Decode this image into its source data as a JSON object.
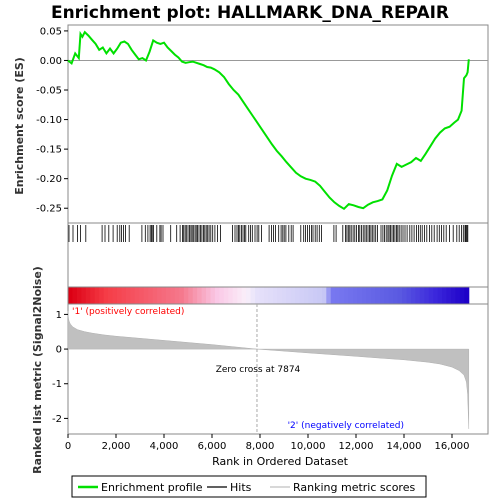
{
  "chart_data": {
    "type": "line",
    "title": "Enrichment plot: HALLMARK_DNA_REPAIR",
    "es_panel": {
      "ylabel": "Enrichment score (ES)",
      "ylim": [
        -0.275,
        0.06
      ],
      "yticks": [
        0.05,
        0.0,
        -0.05,
        -0.1,
        -0.15,
        -0.2,
        -0.25
      ],
      "ytick_labels": [
        "0.05",
        "0.00",
        "-0.05",
        "-0.10",
        "-0.15",
        "-0.20",
        "-0.25"
      ],
      "series": [
        {
          "name": "Enrichment profile",
          "color": "#00e000",
          "x": [
            0,
            150,
            300,
            450,
            520,
            600,
            700,
            850,
            1000,
            1150,
            1300,
            1450,
            1600,
            1750,
            1900,
            2050,
            2200,
            2350,
            2500,
            2650,
            2800,
            2950,
            3100,
            3250,
            3400,
            3550,
            3700,
            3850,
            4000,
            4150,
            4300,
            4450,
            4600,
            4750,
            4900,
            5050,
            5200,
            5350,
            5500,
            5650,
            5800,
            5950,
            6100,
            6300,
            6500,
            6700,
            6900,
            7100,
            7300,
            7500,
            7700,
            7900,
            8100,
            8300,
            8500,
            8700,
            8900,
            9100,
            9300,
            9500,
            9700,
            9900,
            10100,
            10300,
            10500,
            10700,
            10900,
            11100,
            11300,
            11500,
            11700,
            11900,
            12100,
            12300,
            12500,
            12700,
            12900,
            13100,
            13300,
            13500,
            13700,
            13900,
            14100,
            14300,
            14500,
            14700,
            14900,
            15100,
            15300,
            15500,
            15700,
            15900,
            16100,
            16250,
            16400,
            16500,
            16600,
            16650,
            16700
          ],
          "y": [
            0.0,
            -0.005,
            0.012,
            0.004,
            0.045,
            0.04,
            0.048,
            0.042,
            0.035,
            0.028,
            0.018,
            0.022,
            0.012,
            0.02,
            0.012,
            0.02,
            0.03,
            0.032,
            0.028,
            0.018,
            0.01,
            0.002,
            0.004,
            0.0,
            0.015,
            0.034,
            0.03,
            0.028,
            0.03,
            0.022,
            0.016,
            0.01,
            0.005,
            -0.002,
            -0.004,
            -0.003,
            -0.002,
            -0.004,
            -0.006,
            -0.008,
            -0.011,
            -0.012,
            -0.015,
            -0.02,
            -0.028,
            -0.04,
            -0.05,
            -0.058,
            -0.07,
            -0.082,
            -0.094,
            -0.106,
            -0.118,
            -0.13,
            -0.142,
            -0.153,
            -0.162,
            -0.172,
            -0.181,
            -0.19,
            -0.196,
            -0.2,
            -0.202,
            -0.205,
            -0.212,
            -0.222,
            -0.232,
            -0.24,
            -0.246,
            -0.251,
            -0.243,
            -0.245,
            -0.248,
            -0.25,
            -0.244,
            -0.24,
            -0.238,
            -0.235,
            -0.22,
            -0.195,
            -0.175,
            -0.18,
            -0.176,
            -0.172,
            -0.165,
            -0.17,
            -0.158,
            -0.145,
            -0.132,
            -0.122,
            -0.115,
            -0.112,
            -0.105,
            -0.1,
            -0.085,
            -0.03,
            -0.025,
            -0.02,
            0.002
          ]
        }
      ]
    },
    "hits": [
      40,
      210,
      400,
      520,
      740,
      1420,
      1540,
      1700,
      1880,
      2050,
      2160,
      2230,
      2310,
      2400,
      2550,
      3080,
      3220,
      3330,
      3420,
      3470,
      3510,
      3560,
      3700,
      3830,
      3880,
      3960,
      4280,
      4530,
      4670,
      4770,
      4820,
      4880,
      4930,
      5000,
      5060,
      5120,
      5170,
      5220,
      5290,
      5340,
      5400,
      5460,
      5520,
      5580,
      5640,
      5700,
      5760,
      5820,
      5880,
      5950,
      6030,
      6120,
      6230,
      6360,
      6850,
      6960,
      7040,
      7110,
      7160,
      7230,
      7290,
      7350,
      7410,
      7530,
      7600,
      7680,
      7790,
      7880,
      7950,
      8060,
      8380,
      8480,
      8560,
      8640,
      8780,
      8880,
      8950,
      9010,
      9080,
      9200,
      9300,
      9380,
      9700,
      9820,
      9900,
      9980,
      10060,
      10140,
      10210,
      10300,
      10380,
      10470,
      10560,
      11080,
      11170,
      11450,
      11560,
      11620,
      11680,
      11740,
      11800,
      11880,
      11950,
      12020,
      12100,
      12160,
      12230,
      12300,
      12370,
      12430,
      12500,
      12560,
      12620,
      12680,
      12750,
      12820,
      12900,
      13040,
      13120,
      13190,
      13260,
      13330,
      13380,
      13440,
      13500,
      13560,
      13620,
      13690,
      13740,
      13800,
      13880,
      13960,
      14040,
      14130,
      14240,
      14330,
      14420,
      14520,
      14600,
      14680,
      14760,
      14860,
      14950,
      15060,
      15160,
      15260,
      15380,
      15470,
      15560,
      15660,
      15760,
      15900,
      16050,
      16200,
      16300,
      16390,
      16470,
      16540,
      16580,
      16620,
      16660
    ],
    "metric_panel": {
      "ylabel": "Ranked list metric (Signal2Noise)",
      "ylim": [
        -2.45,
        1.3
      ],
      "yticks": [
        1,
        0,
        -1,
        -2
      ],
      "ytick_labels": [
        "1",
        "0",
        "-1",
        "-2"
      ],
      "x": [
        0,
        10,
        30,
        60,
        100,
        200,
        400,
        700,
        1000,
        1500,
        2000,
        3000,
        4000,
        5000,
        6000,
        7000,
        7874,
        9000,
        10000,
        11000,
        12000,
        13000,
        14000,
        15000,
        15500,
        16000,
        16300,
        16500,
        16600,
        16650,
        16700
      ],
      "y": [
        1.1,
        0.95,
        0.85,
        0.78,
        0.72,
        0.64,
        0.56,
        0.5,
        0.46,
        0.41,
        0.37,
        0.31,
        0.25,
        0.19,
        0.13,
        0.06,
        0.0,
        -0.06,
        -0.11,
        -0.16,
        -0.21,
        -0.26,
        -0.31,
        -0.38,
        -0.43,
        -0.52,
        -0.62,
        -0.75,
        -0.95,
        -1.3,
        -2.3
      ],
      "zero_cross_label": "Zero cross at 7874",
      "zero_cross": 7874,
      "pos_label": "'1' (positively correlated)",
      "neg_label": "'2' (negatively correlated)"
    },
    "xaxis": {
      "label": "Rank in Ordered Dataset",
      "xlim": [
        0,
        17500
      ],
      "ticks": [
        0,
        2000,
        4000,
        6000,
        8000,
        10000,
        12000,
        14000,
        16000
      ],
      "tick_labels": [
        "0",
        "2,000",
        "4,000",
        "6,000",
        "8,000",
        "10,000",
        "12,000",
        "14,000",
        "16,000"
      ]
    },
    "legend": {
      "items": [
        "Enrichment profile",
        "Hits",
        "Ranking metric scores"
      ],
      "placement": "bottom"
    },
    "colors": {
      "profile": "#00e000",
      "positive": "#ff0000",
      "negative": "#0000ff",
      "metric_fill": "#c0c0c0"
    }
  }
}
